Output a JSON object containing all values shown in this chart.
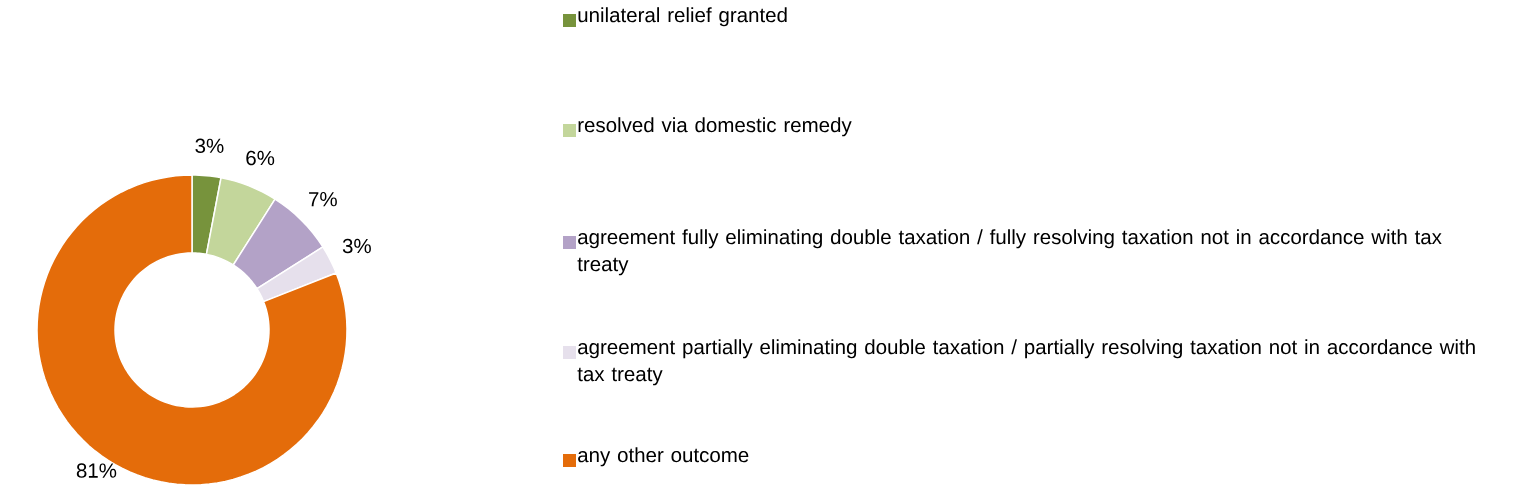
{
  "chart_data": {
    "type": "donut",
    "categories": [
      "unilateral relief granted",
      "resolved via domestic remedy",
      "agreement fully eliminating double taxation / fully resolving taxation not in accordance with tax treaty",
      "agreement partially eliminating double taxation / partially resolving taxation not in accordance with tax treaty",
      "any other outcome"
    ],
    "values": [
      3,
      6,
      7,
      3,
      81
    ],
    "colors": [
      "#77933c",
      "#c3d69b",
      "#b3a2c7",
      "#e6e0ec",
      "#e46c0a"
    ],
    "value_labels": [
      "3%",
      "6%",
      "7%",
      "3%",
      "81%"
    ],
    "legend": "right"
  }
}
